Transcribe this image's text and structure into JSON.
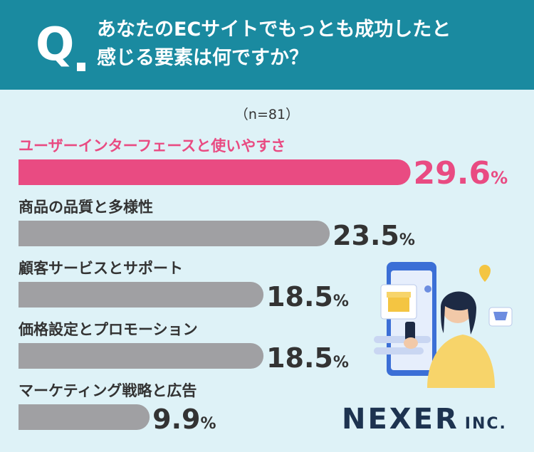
{
  "header": {
    "q_mark": "Q",
    "question_line1": "あなたのECサイトでもっとも成功したと",
    "question_line2": "感じる要素は何ですか？"
  },
  "sample_size": "（n=81）",
  "chart_data": {
    "type": "bar",
    "orientation": "horizontal",
    "categories": [
      "ユーザーインターフェースと使いやすさ",
      "商品の品質と多様性",
      "顧客サービスとサポート",
      "価格設定とプロモーション",
      "マーケティング戦略と広告"
    ],
    "values": [
      29.6,
      23.5,
      18.5,
      18.5,
      9.9
    ],
    "value_labels": [
      "29.6",
      "23.5",
      "18.5",
      "18.5",
      "9.9"
    ],
    "unit": "%",
    "highlight_index": 0,
    "highlight_color": "#e94b82",
    "bar_color": "#a0a0a3"
  },
  "logo": {
    "main": "NEXER",
    "suffix": "INC."
  }
}
